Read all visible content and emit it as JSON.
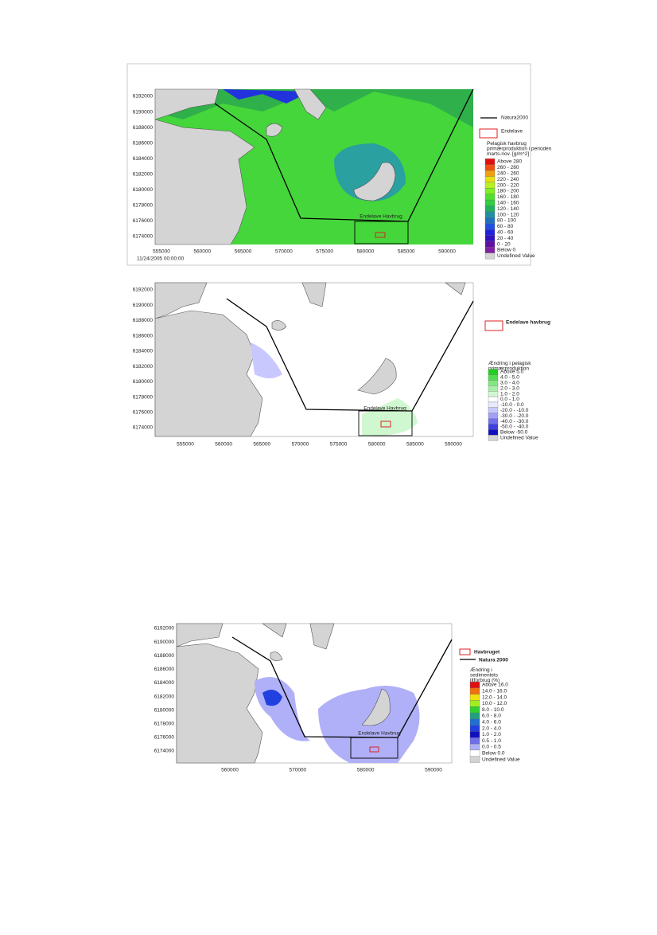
{
  "maps": [
    {
      "yticks": [
        "6192000",
        "6190000",
        "6188000",
        "6186000",
        "6184000",
        "6182000",
        "6180000",
        "6178000",
        "6176000",
        "6174000"
      ],
      "xticks": [
        "555000",
        "560000",
        "565000",
        "570000",
        "575000",
        "580000",
        "585000",
        "590000"
      ],
      "timestamp": "11/24/2005 00:00:00",
      "site_label": "Endelave Havbrug",
      "line_legend": "Natura2000",
      "farm_legend": "Endelave",
      "legend_title": "Pelagisk havbrug primærproduktion i perioden marts-nov. [g/m^2]",
      "legend": [
        {
          "label": "Above 280",
          "color": "#e01010"
        },
        {
          "label": "260 - 280",
          "color": "#f05010"
        },
        {
          "label": "240 - 260",
          "color": "#f0a010"
        },
        {
          "label": "220 - 240",
          "color": "#e8e010"
        },
        {
          "label": "200 - 220",
          "color": "#b8f020"
        },
        {
          "label": "180 - 200",
          "color": "#80f020"
        },
        {
          "label": "160 - 180",
          "color": "#50e030"
        },
        {
          "label": "140 - 160",
          "color": "#30d040"
        },
        {
          "label": "120 - 140",
          "color": "#20b060"
        },
        {
          "label": "100 - 120",
          "color": "#2090a0"
        },
        {
          "label": "80 - 100",
          "color": "#2070c0"
        },
        {
          "label": "60 - 80",
          "color": "#2050e0"
        },
        {
          "label": "40 - 60",
          "color": "#2020e0"
        },
        {
          "label": "20 - 40",
          "color": "#3010c0"
        },
        {
          "label": "0 - 20",
          "color": "#6010a0"
        },
        {
          "label": "Below 0",
          "color": "#8020a0"
        },
        {
          "label": "Undefined Value",
          "color": "#d4d4d4"
        }
      ]
    },
    {
      "yticks": [
        "6192000",
        "6190000",
        "6188000",
        "6186000",
        "6184000",
        "6182000",
        "6180000",
        "6178000",
        "6176000",
        "6174000"
      ],
      "xticks": [
        "555000",
        "560000",
        "565000",
        "570000",
        "575000",
        "580000",
        "585000",
        "590000"
      ],
      "site_label": "Endelave Havbrug",
      "farm_legend": "Endelave havbrug",
      "legend_title": "Ændring i pelagisk primærproduktion (%)",
      "legend": [
        {
          "label": "Above 5.0",
          "color": "#20d020"
        },
        {
          "label": "4.0 - 5.0",
          "color": "#50dd50"
        },
        {
          "label": "3.0 - 4.0",
          "color": "#80e880"
        },
        {
          "label": "2.0 - 3.0",
          "color": "#a8f0a8"
        },
        {
          "label": "1.0 - 2.0",
          "color": "#d0f8d0"
        },
        {
          "label": "0.0 - 1.0",
          "color": "#ffffff"
        },
        {
          "label": "-10.0 - 0.0",
          "color": "#eaeaff"
        },
        {
          "label": "-20.0 - -10.0",
          "color": "#c8c8ff"
        },
        {
          "label": "-30.0 - -20.0",
          "color": "#a0a0f8"
        },
        {
          "label": "-40.0 - -30.0",
          "color": "#7070f0"
        },
        {
          "label": "-50.0 - -40.0",
          "color": "#4040e0"
        },
        {
          "label": "Below -50.0",
          "color": "#1010c0"
        },
        {
          "label": "Undefined Value",
          "color": "#d4d4d4"
        }
      ]
    },
    {
      "yticks": [
        "6192000",
        "6190000",
        "6188000",
        "6186000",
        "6184000",
        "6182000",
        "6180000",
        "6178000",
        "6176000",
        "6174000"
      ],
      "xticks": [
        "560000",
        "570000",
        "580000",
        "590000"
      ],
      "site_label": "Endelave Havbrug",
      "farm_legend": "Havbruget",
      "line_legend": "Natura 2000",
      "legend_title": "Ændring i sedimentets iltforbrug (%)",
      "legend": [
        {
          "label": "Above 16.0",
          "color": "#e01010"
        },
        {
          "label": "14.0 - 16.0",
          "color": "#f07010"
        },
        {
          "label": "12.0 - 14.0",
          "color": "#f0e010"
        },
        {
          "label": "10.0 - 12.0",
          "color": "#a0f020"
        },
        {
          "label": "8.0 - 10.0",
          "color": "#30d030"
        },
        {
          "label": "6.0 - 8.0",
          "color": "#20a080"
        },
        {
          "label": "4.0 - 6.0",
          "color": "#2070d0"
        },
        {
          "label": "2.0 - 4.0",
          "color": "#2040e0"
        },
        {
          "label": "1.0 - 2.0",
          "color": "#1010c0"
        },
        {
          "label": "0.5 - 1.0",
          "color": "#7070e8"
        },
        {
          "label": "0.0 - 0.5",
          "color": "#b0b0f8"
        },
        {
          "label": "Below 0.0",
          "color": "#ffffff"
        },
        {
          "label": "Undefined Value",
          "color": "#d4d4d4"
        }
      ]
    }
  ]
}
